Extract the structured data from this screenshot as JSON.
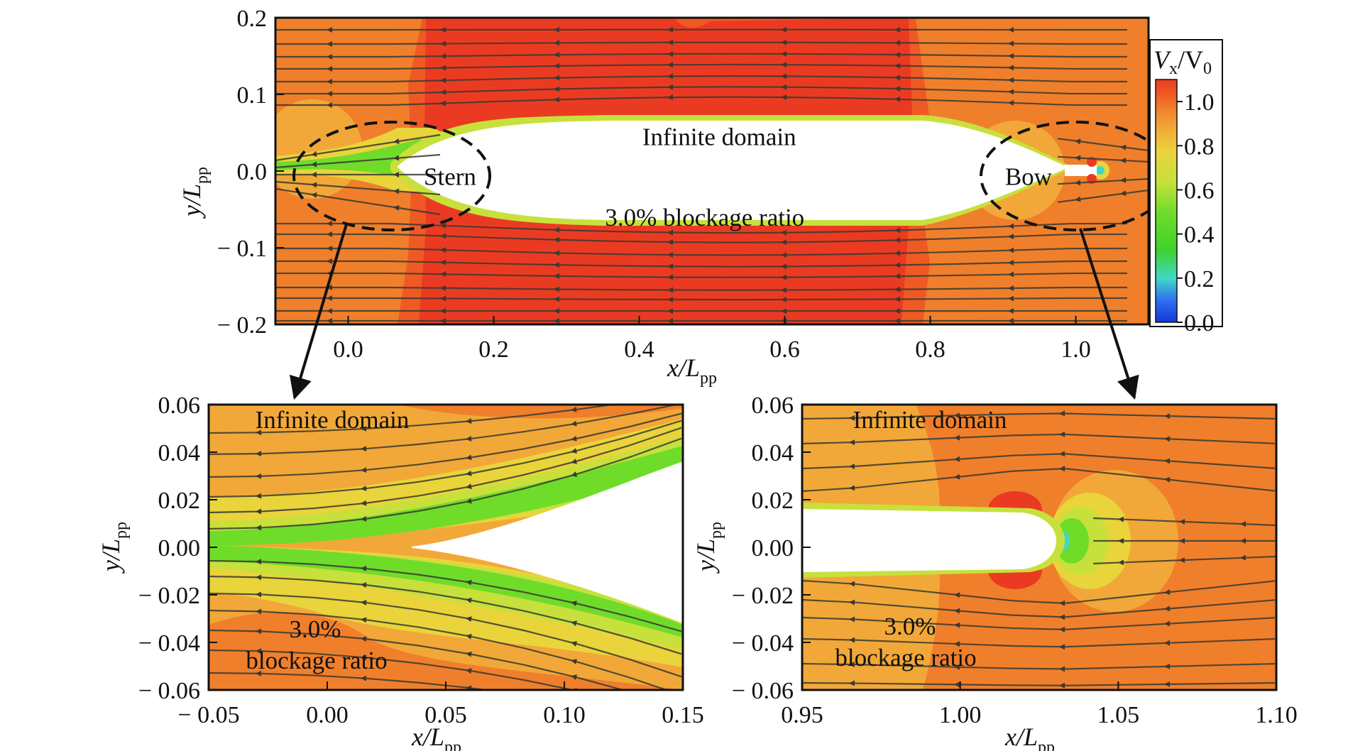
{
  "colors": {
    "red": "#ea3b22",
    "redorange": "#ef5a24",
    "orange": "#f07f2c",
    "amber": "#f2a838",
    "yellow": "#e9d43c",
    "yellowgreen": "#c8e03c",
    "green": "#6fdc2a",
    "green2": "#3fd22a",
    "cyan": "#3fd8c8",
    "blue": "#2f6ff0",
    "darkblue": "#1438d8",
    "streamline": "#3a3a30",
    "dashed": "#111111"
  },
  "chart_data": [
    {
      "id": "main",
      "type": "heatmap",
      "xlabel": "x/L",
      "xlabel_sub": "pp",
      "ylabel": "y/L",
      "ylabel_sub": "pp",
      "xlim": [
        -0.1,
        1.1
      ],
      "ylim": [
        -0.2,
        0.2
      ],
      "xticks": [
        0.0,
        0.2,
        0.4,
        0.6,
        0.8,
        1.0
      ],
      "xtick_labels": [
        "0.0",
        "0.2",
        "0.4",
        "0.6",
        "0.8",
        "1.0"
      ],
      "yticks": [
        0.2,
        0.1,
        0.0,
        -0.1,
        -0.2
      ],
      "ytick_labels": [
        "0.2",
        "0.1",
        "0.0",
        "− 0.1",
        "− 0.2"
      ],
      "annotations": [
        {
          "text": "Infinite domain",
          "x": 0.51,
          "y": 0.045
        },
        {
          "text": "3.0% blockage ratio",
          "x": 0.49,
          "y": -0.06
        },
        {
          "text": "Stern",
          "x": 0.14,
          "y": -0.007
        },
        {
          "text": "Bow",
          "x": 0.935,
          "y": -0.007
        }
      ],
      "hull": {
        "x_stern": 0.0,
        "x_bow": 1.0,
        "half_width_max": 0.07
      },
      "field_levels_Vx_V0": {
        "freestream": 1.0,
        "wake_core": 0.5,
        "stagnation": 0.1
      },
      "colorbar": {
        "title": "V",
        "title_sub_x": "x",
        "title_mid": "/V",
        "title_sub_0": "0",
        "ticks": [
          1.0,
          0.8,
          0.6,
          0.4,
          0.2,
          0.0
        ],
        "tick_labels": [
          "1.0",
          "0.8",
          "0.6",
          "0.4",
          "0.2",
          "0.0"
        ],
        "range": [
          0.0,
          1.1
        ]
      }
    },
    {
      "id": "stern",
      "type": "heatmap",
      "xlabel": "x/L",
      "xlabel_sub": "pp",
      "ylabel": "y/L",
      "ylabel_sub": "pp",
      "xlim": [
        -0.05,
        0.15
      ],
      "ylim": [
        -0.06,
        0.06
      ],
      "xticks": [
        -0.05,
        0.0,
        0.05,
        0.1,
        0.15
      ],
      "xtick_labels": [
        "− 0.05",
        "0.00",
        "0.05",
        "0.10",
        "0.15"
      ],
      "yticks": [
        0.06,
        0.04,
        0.02,
        0.0,
        -0.02,
        -0.04,
        -0.06
      ],
      "ytick_labels": [
        "0.06",
        "0.04",
        "0.02",
        "0.00",
        "− 0.02",
        "− 0.04",
        "− 0.06"
      ],
      "annotations": [
        {
          "text": "Infinite domain"
        },
        {
          "text": "3.0%"
        },
        {
          "text": "blockage ratio"
        }
      ]
    },
    {
      "id": "bow",
      "type": "heatmap",
      "xlabel": "x/L",
      "xlabel_sub": "pp",
      "ylabel": "y/L",
      "ylabel_sub": "pp",
      "xlim": [
        0.95,
        1.1
      ],
      "ylim": [
        -0.06,
        0.06
      ],
      "xticks": [
        0.95,
        1.0,
        1.05,
        1.1
      ],
      "xtick_labels": [
        "0.95",
        "1.00",
        "1.05",
        "1.10"
      ],
      "yticks": [
        0.06,
        0.04,
        0.02,
        0.0,
        -0.02,
        -0.04,
        -0.06
      ],
      "ytick_labels": [
        "0.06",
        "0.04",
        "0.02",
        "0.00",
        "− 0.02",
        "− 0.04",
        "− 0.06"
      ],
      "annotations": [
        {
          "text": "Infinite domain"
        },
        {
          "text": "3.0%"
        },
        {
          "text": "blockage ratio"
        }
      ]
    }
  ]
}
